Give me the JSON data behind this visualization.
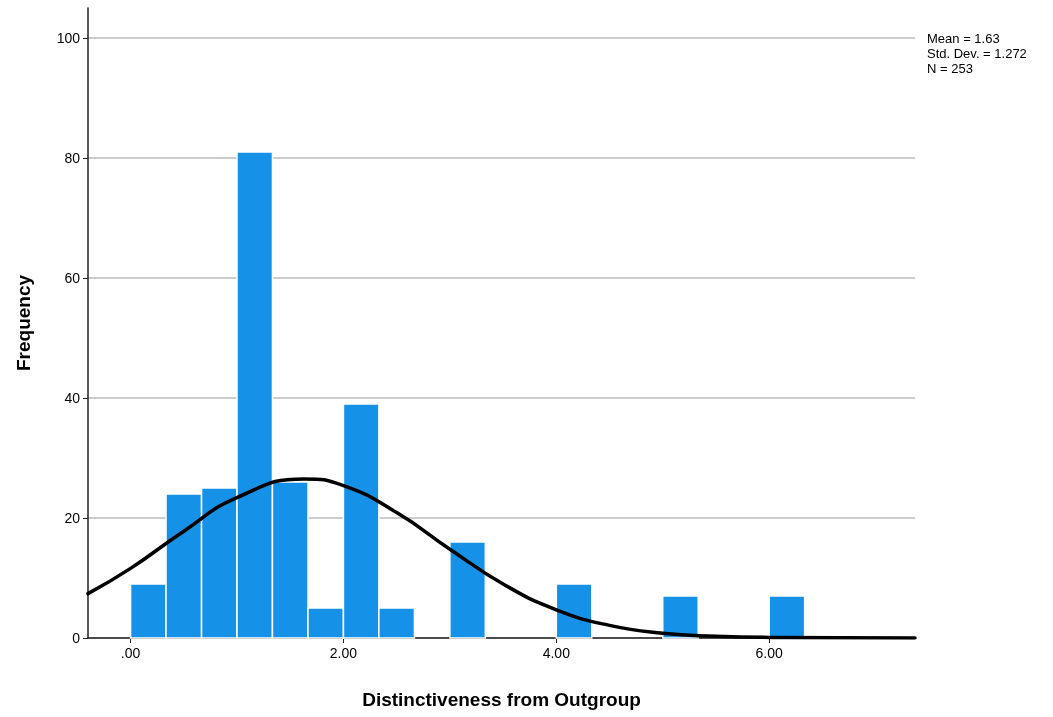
{
  "chart_data": {
    "type": "histogram",
    "xlabel": "Distinctiveness from Outgroup",
    "ylabel": "Frequency",
    "bins": [
      0,
      0.333,
      0.667,
      1,
      1.333,
      1.667,
      2,
      2.333,
      2.667,
      3,
      3.333,
      3.667,
      4,
      4.333,
      4.667,
      5,
      5.333,
      5.667,
      6,
      6.333
    ],
    "series": [
      {
        "color": "#1591e8",
        "values": [
          9,
          24,
          25,
          81,
          26,
          5,
          39,
          5,
          0,
          16,
          0,
          0,
          9,
          0,
          0,
          7,
          0,
          0,
          7
        ]
      },
      {
        "type": "line",
        "color": "#000000",
        "x": [
          -0.4,
          0,
          0.5,
          1,
          1.63,
          2,
          2.5,
          3,
          3.5,
          4,
          4.5,
          5,
          5.5,
          6,
          7.37
        ],
        "values": [
          7.4,
          11.6,
          17.8,
          23.4,
          26.5,
          25.4,
          20.9,
          14.8,
          9.0,
          4.7,
          2.1,
          0.8,
          0.3,
          0.1,
          0
        ]
      }
    ],
    "xlim": [
      -0.4,
      7.37
    ],
    "xticks": [
      {
        "value": 0,
        "label": ".00"
      },
      {
        "value": 2,
        "label": "2.00"
      },
      {
        "value": 4,
        "label": "4.00"
      },
      {
        "value": 6,
        "label": "6.00"
      }
    ],
    "ylim": [
      0,
      105
    ],
    "yticks": [
      0,
      20,
      40,
      60,
      80,
      100
    ],
    "grid": "y",
    "marker": "none",
    "line_style": "solid",
    "annotations": [
      "Mean = 1.63",
      "Std. Dev. = 1.272",
      "N = 253"
    ]
  }
}
